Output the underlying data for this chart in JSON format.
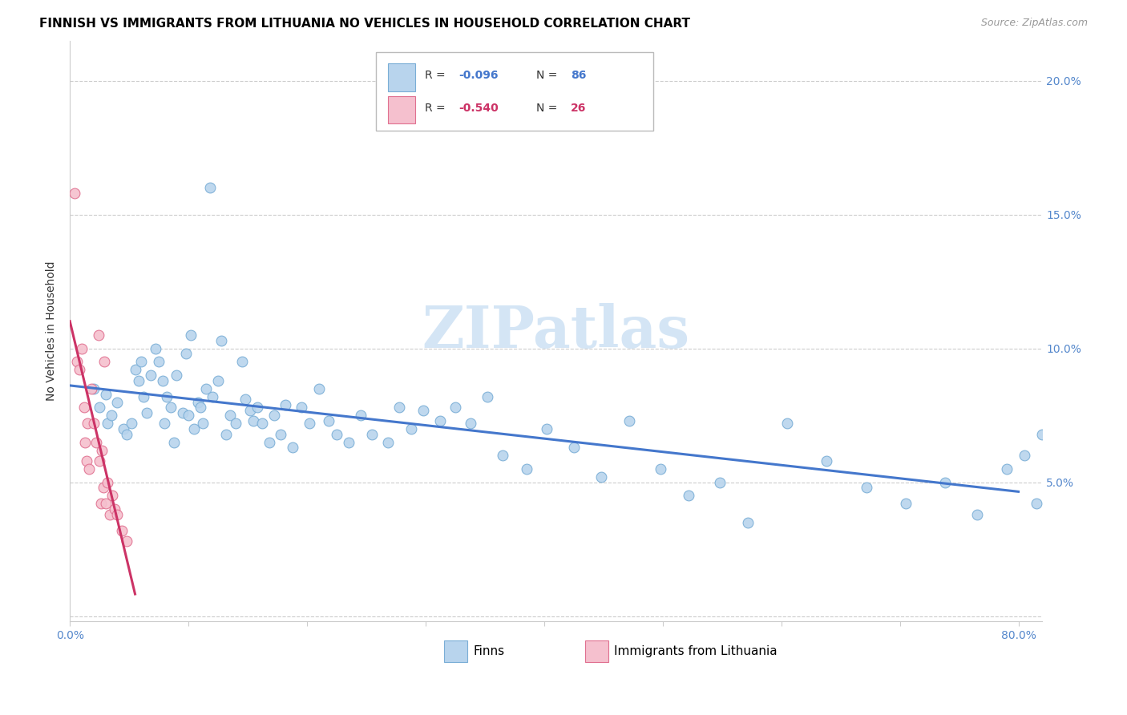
{
  "title": "FINNISH VS IMMIGRANTS FROM LITHUANIA NO VEHICLES IN HOUSEHOLD CORRELATION CHART",
  "source": "Source: ZipAtlas.com",
  "ylabel": "No Vehicles in Household",
  "xlim": [
    0.0,
    0.82
  ],
  "ylim": [
    -0.002,
    0.215
  ],
  "yticks": [
    0.0,
    0.05,
    0.1,
    0.15,
    0.2
  ],
  "xticks": [
    0.0,
    0.1,
    0.2,
    0.3,
    0.4,
    0.5,
    0.6,
    0.7,
    0.8
  ],
  "finns_color": "#b8d4ed",
  "finns_edge_color": "#7aaed6",
  "lith_color": "#f5c0ce",
  "lith_edge_color": "#e07090",
  "line_finns_color": "#4477cc",
  "line_lith_color": "#cc3366",
  "watermark": "ZIPatlas",
  "finns_x": [
    0.02,
    0.025,
    0.03,
    0.032,
    0.035,
    0.04,
    0.045,
    0.048,
    0.052,
    0.055,
    0.058,
    0.06,
    0.062,
    0.065,
    0.068,
    0.072,
    0.075,
    0.078,
    0.08,
    0.082,
    0.085,
    0.088,
    0.09,
    0.095,
    0.098,
    0.1,
    0.102,
    0.105,
    0.108,
    0.11,
    0.112,
    0.115,
    0.118,
    0.12,
    0.125,
    0.128,
    0.132,
    0.135,
    0.14,
    0.145,
    0.148,
    0.152,
    0.155,
    0.158,
    0.162,
    0.168,
    0.172,
    0.178,
    0.182,
    0.188,
    0.195,
    0.202,
    0.21,
    0.218,
    0.225,
    0.235,
    0.245,
    0.255,
    0.268,
    0.278,
    0.288,
    0.298,
    0.312,
    0.325,
    0.338,
    0.352,
    0.365,
    0.385,
    0.402,
    0.425,
    0.448,
    0.472,
    0.498,
    0.522,
    0.548,
    0.572,
    0.605,
    0.638,
    0.672,
    0.705,
    0.738,
    0.765,
    0.79,
    0.805,
    0.815,
    0.82
  ],
  "finns_y": [
    0.085,
    0.078,
    0.083,
    0.072,
    0.075,
    0.08,
    0.07,
    0.068,
    0.072,
    0.092,
    0.088,
    0.095,
    0.082,
    0.076,
    0.09,
    0.1,
    0.095,
    0.088,
    0.072,
    0.082,
    0.078,
    0.065,
    0.09,
    0.076,
    0.098,
    0.075,
    0.105,
    0.07,
    0.08,
    0.078,
    0.072,
    0.085,
    0.16,
    0.082,
    0.088,
    0.103,
    0.068,
    0.075,
    0.072,
    0.095,
    0.081,
    0.077,
    0.073,
    0.078,
    0.072,
    0.065,
    0.075,
    0.068,
    0.079,
    0.063,
    0.078,
    0.072,
    0.085,
    0.073,
    0.068,
    0.065,
    0.075,
    0.068,
    0.065,
    0.078,
    0.07,
    0.077,
    0.073,
    0.078,
    0.072,
    0.082,
    0.06,
    0.055,
    0.07,
    0.063,
    0.052,
    0.073,
    0.055,
    0.045,
    0.05,
    0.035,
    0.072,
    0.058,
    0.048,
    0.042,
    0.05,
    0.038,
    0.055,
    0.06,
    0.042,
    0.068
  ],
  "lith_x": [
    0.004,
    0.006,
    0.008,
    0.01,
    0.012,
    0.013,
    0.014,
    0.015,
    0.016,
    0.018,
    0.02,
    0.022,
    0.024,
    0.025,
    0.026,
    0.027,
    0.028,
    0.029,
    0.03,
    0.032,
    0.034,
    0.036,
    0.038,
    0.04,
    0.044,
    0.048
  ],
  "lith_y": [
    0.158,
    0.095,
    0.092,
    0.1,
    0.078,
    0.065,
    0.058,
    0.072,
    0.055,
    0.085,
    0.072,
    0.065,
    0.105,
    0.058,
    0.042,
    0.062,
    0.048,
    0.095,
    0.042,
    0.05,
    0.038,
    0.045,
    0.04,
    0.038,
    0.032,
    0.028
  ],
  "background_color": "#ffffff",
  "grid_color": "#cccccc",
  "title_fontsize": 11,
  "axis_label_fontsize": 10,
  "tick_fontsize": 10,
  "legend_fontsize": 10,
  "watermark_fontsize": 52,
  "watermark_color": "#d4e5f5",
  "source_fontsize": 9,
  "scatter_size": 85,
  "tick_color": "#5588cc"
}
